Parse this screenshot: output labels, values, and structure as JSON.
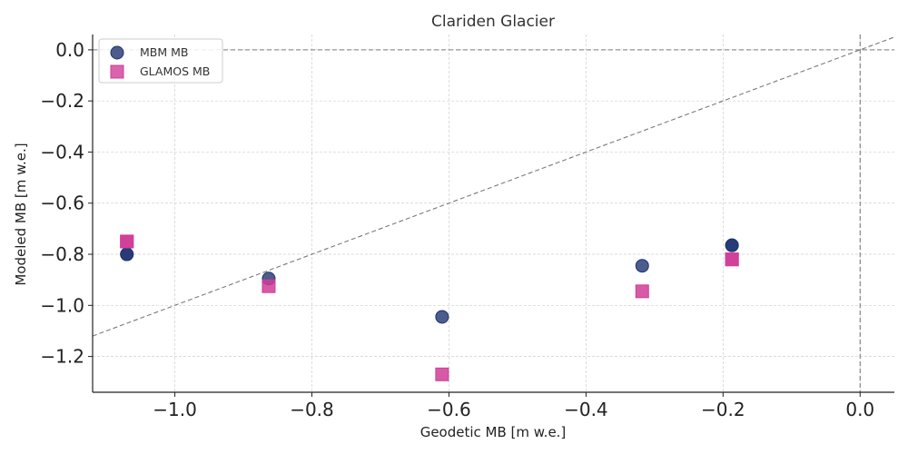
{
  "chart_data": {
    "type": "scatter",
    "title": "Clariden Glacier",
    "xlabel": "Geodetic MB [m w.e.]",
    "ylabel": "Modeled MB [m w.e.]",
    "xlim": [
      -1.12,
      0.05
    ],
    "ylim": [
      -1.34,
      0.06
    ],
    "xticks": [
      -1.0,
      -0.8,
      -0.6,
      -0.4,
      -0.2,
      0.0
    ],
    "xtick_labels": [
      "−1.0",
      "−0.8",
      "−0.6",
      "−0.4",
      "−0.2",
      "0.0"
    ],
    "yticks": [
      0.0,
      -0.2,
      -0.4,
      -0.6,
      -0.8,
      -1.0,
      -1.2
    ],
    "ytick_labels": [
      "0.0",
      "−0.2",
      "−0.4",
      "−0.6",
      "−0.8",
      "−1.0",
      "−1.2"
    ],
    "grid": true,
    "legend_position": "top-left",
    "reference_lines": {
      "identity_line": true,
      "horizontal_zero": true,
      "vertical_zero": true
    },
    "series": [
      {
        "name": "MBM MB",
        "marker": "circle",
        "color": "#1f3370",
        "points": [
          {
            "x": -1.07,
            "y": -0.8
          },
          {
            "x": -1.07,
            "y": -0.8
          },
          {
            "x": -0.863,
            "y": -0.895
          },
          {
            "x": -0.61,
            "y": -1.045
          },
          {
            "x": -0.318,
            "y": -0.845
          },
          {
            "x": -0.187,
            "y": -0.765
          },
          {
            "x": -0.187,
            "y": -0.765
          }
        ]
      },
      {
        "name": "GLAMOS MB",
        "marker": "square",
        "color": "#d03d98",
        "points": [
          {
            "x": -1.07,
            "y": -0.75
          },
          {
            "x": -1.07,
            "y": -0.75
          },
          {
            "x": -0.863,
            "y": -0.925
          },
          {
            "x": -0.61,
            "y": -1.27
          },
          {
            "x": -0.318,
            "y": -0.945
          },
          {
            "x": -0.187,
            "y": -0.82
          },
          {
            "x": -0.187,
            "y": -0.82
          }
        ]
      }
    ]
  }
}
